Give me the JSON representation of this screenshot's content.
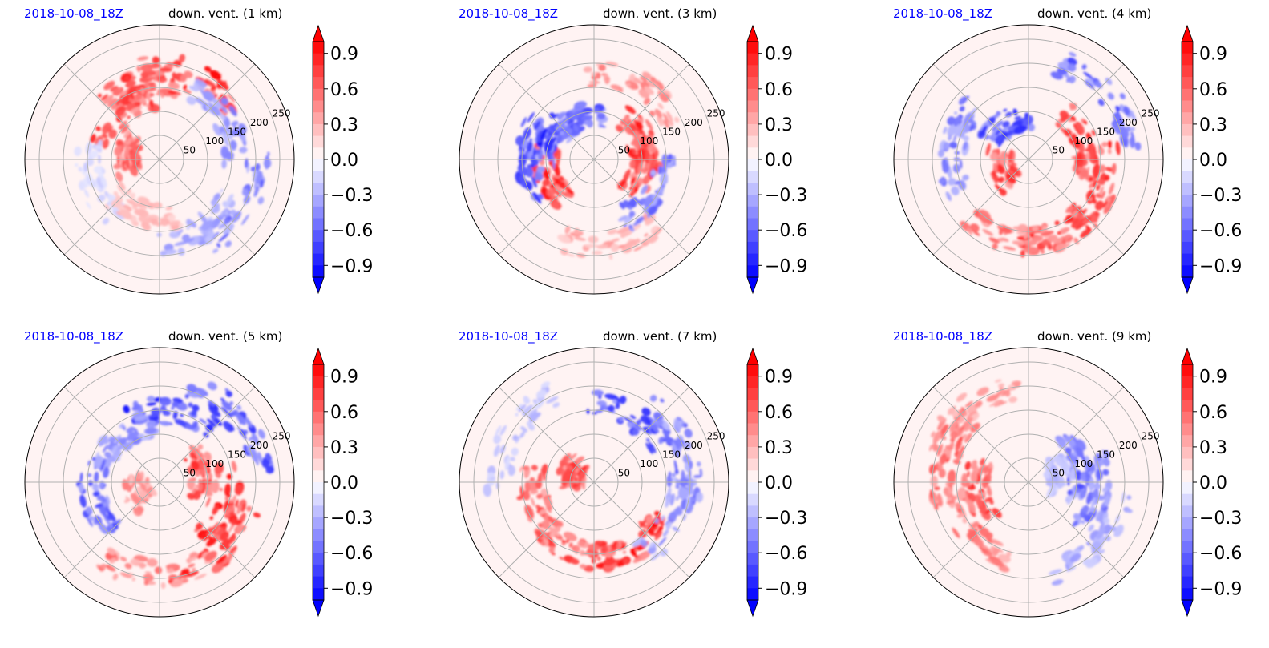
{
  "figure": {
    "colorbar": {
      "ticks": [
        "0.9",
        "0.6",
        "0.3",
        "0.0",
        "−0.3",
        "−0.6",
        "−0.9"
      ],
      "tick_values": [
        0.9,
        0.6,
        0.3,
        0.0,
        -0.3,
        -0.6,
        -0.9
      ],
      "min": -1.0,
      "max": 1.0,
      "levels": 20,
      "extend": "both",
      "cmap": "bwr"
    },
    "colors": {
      "positive": "#ff0000",
      "negative": "#0000ff",
      "neutral": "#ffffff",
      "date": "#0000ff"
    }
  },
  "chart_data": [
    {
      "type": "heatmap",
      "projection": "polar",
      "date": "2018-10-08_18Z",
      "title": "down. vent. (1 km)",
      "radial_ticks": [
        "50",
        "100",
        "150",
        "200",
        "250"
      ],
      "radial_values": [
        50,
        100,
        150,
        200,
        250
      ],
      "grid": true,
      "features": [
        {
          "angle": 70,
          "radius": 190,
          "value": 0.95
        },
        {
          "angle": 100,
          "radius": 160,
          "value": 0.9
        },
        {
          "angle": 130,
          "radius": 130,
          "value": 0.8
        },
        {
          "angle": 170,
          "radius": 70,
          "value": 0.7
        },
        {
          "angle": 30,
          "radius": 160,
          "value": -0.5
        },
        {
          "angle": -30,
          "radius": 200,
          "value": -0.6
        },
        {
          "angle": -60,
          "radius": 170,
          "value": -0.4
        },
        {
          "angle": 200,
          "radius": 150,
          "value": -0.2
        },
        {
          "angle": -110,
          "radius": 120,
          "value": 0.3
        }
      ]
    },
    {
      "type": "heatmap",
      "projection": "polar",
      "date": "2018-10-08_18Z",
      "title": "down. vent. (3 km)",
      "radial_ticks": [
        "50",
        "100",
        "150",
        "200",
        "250"
      ],
      "radial_values": [
        50,
        100,
        150,
        200,
        250
      ],
      "grid": true,
      "features": [
        {
          "angle": 20,
          "radius": 110,
          "value": 0.9
        },
        {
          "angle": -10,
          "radius": 100,
          "value": 0.85
        },
        {
          "angle": 200,
          "radius": 100,
          "value": 0.9
        },
        {
          "angle": -80,
          "radius": 180,
          "value": 0.4
        },
        {
          "angle": 180,
          "radius": 140,
          "value": -0.8
        },
        {
          "angle": 150,
          "radius": 100,
          "value": -0.9
        },
        {
          "angle": 110,
          "radius": 90,
          "value": -0.7
        },
        {
          "angle": -30,
          "radius": 140,
          "value": -0.6
        },
        {
          "angle": 60,
          "radius": 180,
          "value": 0.5
        }
      ]
    },
    {
      "type": "heatmap",
      "projection": "polar",
      "date": "2018-10-08_18Z",
      "title": "down. vent. (4 km)",
      "radial_ticks": [
        "50",
        "100",
        "150",
        "200",
        "250"
      ],
      "radial_values": [
        50,
        100,
        150,
        200,
        250
      ],
      "grid": true,
      "features": [
        {
          "angle": 20,
          "radius": 120,
          "value": 0.9
        },
        {
          "angle": -20,
          "radius": 160,
          "value": 0.9
        },
        {
          "angle": -60,
          "radius": 170,
          "value": 0.85
        },
        {
          "angle": -100,
          "radius": 170,
          "value": 0.6
        },
        {
          "angle": 200,
          "radius": 60,
          "value": 0.8
        },
        {
          "angle": 170,
          "radius": 160,
          "value": -0.6
        },
        {
          "angle": 120,
          "radius": 90,
          "value": -0.8
        },
        {
          "angle": 40,
          "radius": 210,
          "value": -0.7
        }
      ]
    },
    {
      "type": "heatmap",
      "projection": "polar",
      "date": "2018-10-08_18Z",
      "title": "down. vent. (5 km)",
      "radial_ticks": [
        "50",
        "100",
        "150",
        "200",
        "250"
      ],
      "radial_values": [
        50,
        100,
        150,
        200,
        250
      ],
      "grid": true,
      "features": [
        {
          "angle": -20,
          "radius": 150,
          "value": 0.95
        },
        {
          "angle": -50,
          "radius": 190,
          "value": 0.9
        },
        {
          "angle": -90,
          "radius": 190,
          "value": 0.6
        },
        {
          "angle": 10,
          "radius": 90,
          "value": 0.8
        },
        {
          "angle": 80,
          "radius": 150,
          "value": -0.9
        },
        {
          "angle": 40,
          "radius": 210,
          "value": -0.8
        },
        {
          "angle": 130,
          "radius": 120,
          "value": -0.5
        },
        {
          "angle": 190,
          "radius": 140,
          "value": -0.7
        },
        {
          "angle": 200,
          "radius": 50,
          "value": 0.5
        }
      ]
    },
    {
      "type": "heatmap",
      "projection": "polar",
      "date": "2018-10-08_18Z",
      "title": "down. vent. (7 km)",
      "radial_ticks": [
        "50",
        "100",
        "150",
        "200",
        "250"
      ],
      "radial_values": [
        50,
        100,
        150,
        200,
        250
      ],
      "grid": true,
      "features": [
        {
          "angle": -60,
          "radius": 160,
          "value": 0.95
        },
        {
          "angle": -100,
          "radius": 150,
          "value": 0.8
        },
        {
          "angle": 200,
          "radius": 130,
          "value": 0.7
        },
        {
          "angle": 160,
          "radius": 50,
          "value": 0.8
        },
        {
          "angle": 60,
          "radius": 160,
          "value": -0.8
        },
        {
          "angle": 20,
          "radius": 200,
          "value": -0.6
        },
        {
          "angle": -20,
          "radius": 180,
          "value": -0.5
        },
        {
          "angle": 150,
          "radius": 200,
          "value": -0.3
        }
      ]
    },
    {
      "type": "heatmap",
      "projection": "polar",
      "date": "2018-10-08_18Z",
      "title": "down. vent. (9 km)",
      "radial_ticks": [
        "50",
        "100",
        "150",
        "200",
        "250"
      ],
      "radial_values": [
        50,
        100,
        150,
        200,
        250
      ],
      "grid": true,
      "features": [
        {
          "angle": 160,
          "radius": 180,
          "value": 0.7
        },
        {
          "angle": 190,
          "radius": 110,
          "value": 0.8
        },
        {
          "angle": 220,
          "radius": 160,
          "value": 0.6
        },
        {
          "angle": 130,
          "radius": 200,
          "value": 0.5
        },
        {
          "angle": 20,
          "radius": 110,
          "value": -0.7
        },
        {
          "angle": -10,
          "radius": 150,
          "value": -0.6
        },
        {
          "angle": -40,
          "radius": 190,
          "value": -0.4
        },
        {
          "angle": 10,
          "radius": 70,
          "value": -0.3
        }
      ]
    }
  ]
}
